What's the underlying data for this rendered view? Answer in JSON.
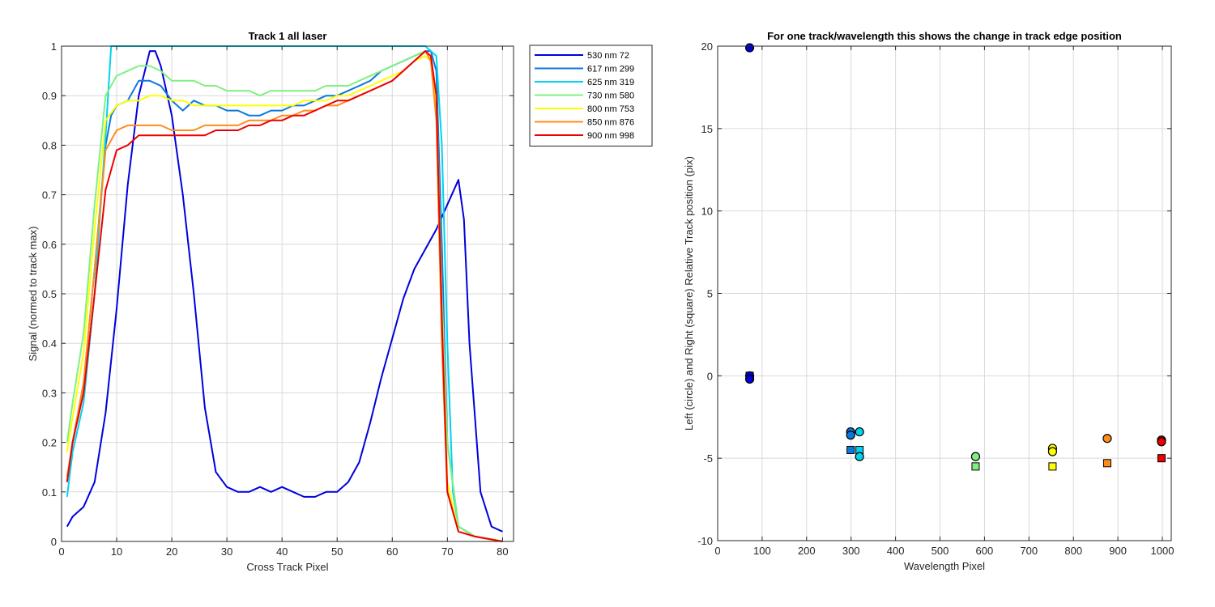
{
  "chart_data": [
    {
      "type": "line",
      "title": "Track 1  all laser",
      "xlabel": "Cross Track Pixel",
      "ylabel": "Signal (normed to track max)",
      "xlim": [
        0,
        82
      ],
      "ylim": [
        0,
        1
      ],
      "xticks": [
        0,
        10,
        20,
        30,
        40,
        50,
        60,
        70,
        80
      ],
      "yticks": [
        0,
        0.1,
        0.2,
        0.3,
        0.4,
        0.5,
        0.6,
        0.7,
        0.8,
        0.9,
        1
      ],
      "ytick_labels": [
        "0",
        "0.1",
        "0.2",
        "0.3",
        "0.4",
        "0.5",
        "0.6",
        "0.7",
        "0.8",
        "0.9",
        "1"
      ],
      "grid": true,
      "legend_position": "outside-top-right",
      "series": [
        {
          "name": "530 nm 72",
          "color": "#0000dd",
          "x": [
            1,
            2,
            4,
            6,
            8,
            10,
            12,
            14,
            16,
            17,
            18,
            20,
            22,
            24,
            26,
            28,
            30,
            32,
            34,
            36,
            38,
            40,
            42,
            44,
            46,
            48,
            50,
            52,
            54,
            56,
            58,
            60,
            62,
            64,
            66,
            68,
            70,
            72,
            73,
            74,
            76,
            78,
            80
          ],
          "y": [
            0.03,
            0.05,
            0.07,
            0.12,
            0.26,
            0.47,
            0.72,
            0.9,
            0.99,
            0.99,
            0.96,
            0.86,
            0.7,
            0.5,
            0.27,
            0.14,
            0.11,
            0.1,
            0.1,
            0.11,
            0.1,
            0.11,
            0.1,
            0.09,
            0.09,
            0.1,
            0.1,
            0.12,
            0.16,
            0.24,
            0.33,
            0.41,
            0.49,
            0.55,
            0.59,
            0.63,
            0.68,
            0.73,
            0.65,
            0.4,
            0.1,
            0.03,
            0.02
          ]
        },
        {
          "name": "617 nm 299",
          "color": "#0a78dc",
          "x": [
            1,
            2,
            4,
            6,
            8,
            9,
            10,
            12,
            14,
            16,
            18,
            20,
            22,
            24,
            26,
            28,
            30,
            32,
            34,
            36,
            38,
            40,
            42,
            44,
            46,
            48,
            50,
            52,
            54,
            56,
            58,
            60,
            62,
            64,
            66,
            67,
            68,
            69,
            70,
            72,
            75,
            80
          ],
          "y": [
            0.12,
            0.2,
            0.32,
            0.55,
            0.8,
            0.86,
            0.88,
            0.89,
            0.93,
            0.93,
            0.92,
            0.89,
            0.87,
            0.89,
            0.88,
            0.88,
            0.87,
            0.87,
            0.86,
            0.86,
            0.87,
            0.87,
            0.88,
            0.88,
            0.89,
            0.9,
            0.9,
            0.91,
            0.92,
            0.93,
            0.95,
            0.96,
            0.97,
            0.98,
            0.99,
            0.99,
            0.95,
            0.6,
            0.2,
            0.03,
            0.01,
            0.0
          ]
        },
        {
          "name": "625 nm 319",
          "color": "#00d2f0",
          "x": [
            1,
            2,
            4,
            6,
            8,
            9,
            10,
            14,
            20,
            30,
            40,
            50,
            60,
            66,
            67,
            68,
            69,
            70,
            71,
            72,
            75,
            80
          ],
          "y": [
            0.09,
            0.18,
            0.28,
            0.5,
            0.82,
            1.0,
            1.0,
            1.0,
            1.0,
            1.0,
            1.0,
            1.0,
            1.0,
            1.0,
            0.99,
            0.98,
            0.8,
            0.4,
            0.1,
            0.03,
            0.01,
            0.0
          ]
        },
        {
          "name": "730 nm 580",
          "color": "#80f080",
          "x": [
            1,
            2,
            4,
            6,
            8,
            10,
            12,
            14,
            16,
            18,
            20,
            22,
            24,
            26,
            28,
            30,
            32,
            34,
            36,
            38,
            40,
            42,
            44,
            46,
            48,
            50,
            52,
            54,
            56,
            58,
            60,
            62,
            64,
            66,
            67,
            68,
            69,
            70,
            72,
            75,
            80
          ],
          "y": [
            0.2,
            0.28,
            0.42,
            0.68,
            0.9,
            0.94,
            0.95,
            0.96,
            0.96,
            0.95,
            0.93,
            0.93,
            0.93,
            0.92,
            0.92,
            0.91,
            0.91,
            0.91,
            0.9,
            0.91,
            0.91,
            0.91,
            0.91,
            0.91,
            0.92,
            0.92,
            0.92,
            0.93,
            0.94,
            0.95,
            0.96,
            0.97,
            0.98,
            0.99,
            0.98,
            0.9,
            0.5,
            0.2,
            0.03,
            0.01,
            0.0
          ]
        },
        {
          "name": "800 nm 753",
          "color": "#ffff00",
          "x": [
            1,
            2,
            4,
            6,
            8,
            10,
            12,
            14,
            16,
            18,
            20,
            22,
            24,
            26,
            28,
            30,
            32,
            34,
            36,
            38,
            40,
            42,
            44,
            46,
            48,
            50,
            52,
            54,
            56,
            58,
            60,
            62,
            64,
            66,
            67,
            68,
            69,
            70,
            72,
            75,
            80
          ],
          "y": [
            0.18,
            0.25,
            0.38,
            0.63,
            0.85,
            0.88,
            0.89,
            0.89,
            0.9,
            0.9,
            0.89,
            0.89,
            0.88,
            0.88,
            0.88,
            0.88,
            0.88,
            0.88,
            0.88,
            0.88,
            0.88,
            0.88,
            0.89,
            0.89,
            0.89,
            0.9,
            0.9,
            0.91,
            0.92,
            0.93,
            0.94,
            0.95,
            0.97,
            0.98,
            0.97,
            0.88,
            0.45,
            0.12,
            0.02,
            0.01,
            0.0
          ]
        },
        {
          "name": "850 nm 876",
          "color": "#ff8c1a",
          "x": [
            1,
            2,
            4,
            6,
            8,
            10,
            12,
            14,
            16,
            18,
            20,
            22,
            24,
            26,
            28,
            30,
            32,
            34,
            36,
            38,
            40,
            42,
            44,
            46,
            48,
            50,
            52,
            54,
            56,
            58,
            60,
            62,
            64,
            66,
            67,
            68,
            69,
            70,
            72,
            75,
            80
          ],
          "y": [
            0.13,
            0.2,
            0.32,
            0.55,
            0.79,
            0.83,
            0.84,
            0.84,
            0.84,
            0.84,
            0.83,
            0.83,
            0.83,
            0.84,
            0.84,
            0.84,
            0.84,
            0.85,
            0.85,
            0.85,
            0.86,
            0.86,
            0.87,
            0.87,
            0.88,
            0.88,
            0.89,
            0.9,
            0.91,
            0.92,
            0.93,
            0.95,
            0.97,
            0.99,
            0.97,
            0.85,
            0.4,
            0.1,
            0.02,
            0.01,
            0.0
          ]
        },
        {
          "name": "900 nm 998",
          "color": "#ee0000",
          "x": [
            1,
            2,
            4,
            6,
            8,
            10,
            12,
            14,
            16,
            18,
            20,
            22,
            24,
            26,
            28,
            30,
            32,
            34,
            36,
            38,
            40,
            42,
            44,
            46,
            48,
            50,
            52,
            54,
            56,
            58,
            60,
            62,
            64,
            66,
            67,
            68,
            69,
            70,
            72,
            75,
            80
          ],
          "y": [
            0.12,
            0.2,
            0.3,
            0.5,
            0.71,
            0.79,
            0.8,
            0.82,
            0.82,
            0.82,
            0.82,
            0.82,
            0.82,
            0.82,
            0.83,
            0.83,
            0.83,
            0.84,
            0.84,
            0.85,
            0.85,
            0.86,
            0.86,
            0.87,
            0.88,
            0.89,
            0.89,
            0.9,
            0.91,
            0.92,
            0.93,
            0.95,
            0.97,
            0.99,
            0.98,
            0.9,
            0.45,
            0.1,
            0.02,
            0.01,
            0.0
          ]
        }
      ]
    },
    {
      "type": "scatter",
      "title": "For one track/wavelength this shows the change in track edge position",
      "xlabel": "Wavelength Pixel",
      "ylabel": "Left (circle) and Right (square) Relative Track position (pix)",
      "xlim": [
        0,
        1020
      ],
      "ylim": [
        -10,
        20
      ],
      "xticks": [
        0,
        100,
        200,
        300,
        400,
        500,
        600,
        700,
        800,
        900,
        1000
      ],
      "yticks": [
        -10,
        -5,
        0,
        5,
        10,
        15,
        20
      ],
      "grid": true,
      "series": [
        {
          "name": "530 nm 72",
          "color": "#0000dd",
          "left": [
            {
              "x": 72,
              "y": 0.0
            },
            {
              "x": 72,
              "y": -0.2
            },
            {
              "x": 72,
              "y": 19.9
            }
          ],
          "right": [
            {
              "x": 72,
              "y": 0.0
            },
            {
              "x": 72,
              "y": -0.1
            }
          ]
        },
        {
          "name": "617 nm 299",
          "color": "#0a78dc",
          "left": [
            {
              "x": 299,
              "y": -3.4
            },
            {
              "x": 299,
              "y": -3.6
            }
          ],
          "right": [
            {
              "x": 299,
              "y": -4.5
            }
          ]
        },
        {
          "name": "625 nm 319",
          "color": "#00d2f0",
          "left": [
            {
              "x": 319,
              "y": -3.4
            },
            {
              "x": 319,
              "y": -4.9
            }
          ],
          "right": [
            {
              "x": 319,
              "y": -4.5
            }
          ]
        },
        {
          "name": "730 nm 580",
          "color": "#80f080",
          "left": [
            {
              "x": 580,
              "y": -4.9
            }
          ],
          "right": [
            {
              "x": 580,
              "y": -5.5
            }
          ]
        },
        {
          "name": "800 nm 753",
          "color": "#ffff00",
          "left": [
            {
              "x": 753,
              "y": -4.4
            },
            {
              "x": 753,
              "y": -4.6
            }
          ],
          "right": [
            {
              "x": 753,
              "y": -5.5
            }
          ]
        },
        {
          "name": "850 nm 876",
          "color": "#ff8c1a",
          "left": [
            {
              "x": 876,
              "y": -3.8
            }
          ],
          "right": [
            {
              "x": 876,
              "y": -5.3
            }
          ]
        },
        {
          "name": "900 nm 998",
          "color": "#ee0000",
          "left": [
            {
              "x": 998,
              "y": -3.9
            },
            {
              "x": 998,
              "y": -4.0
            }
          ],
          "right": [
            {
              "x": 998,
              "y": -5.0
            }
          ]
        }
      ]
    }
  ]
}
